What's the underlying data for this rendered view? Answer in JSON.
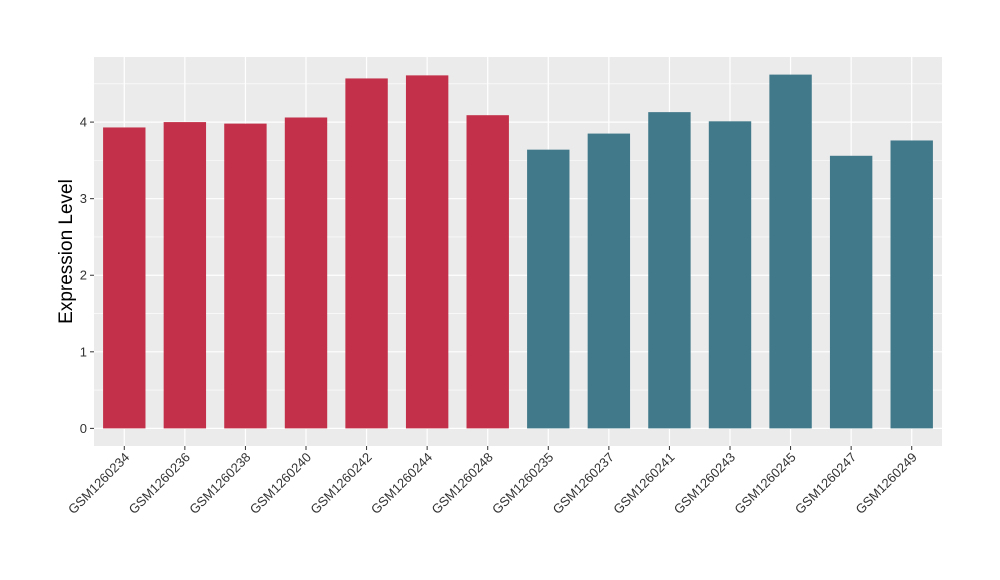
{
  "chart_data": {
    "type": "bar",
    "ylabel": "Expression Level",
    "xlabel": "",
    "ylim": [
      -0.23,
      4.85
    ],
    "yticks": [
      0,
      1,
      2,
      3,
      4
    ],
    "grid": true,
    "colors": {
      "group_a": "#C33049",
      "group_b": "#41798A",
      "panel": "#EBEBEB",
      "grid": "#FFFFFF"
    },
    "categories": [
      "GSM1260234",
      "GSM1260236",
      "GSM1260238",
      "GSM1260240",
      "GSM1260242",
      "GSM1260244",
      "GSM1260248",
      "GSM1260235",
      "GSM1260237",
      "GSM1260241",
      "GSM1260243",
      "GSM1260245",
      "GSM1260247",
      "GSM1260249"
    ],
    "values": [
      3.93,
      4.0,
      3.98,
      4.06,
      4.57,
      4.61,
      4.09,
      3.64,
      3.85,
      4.13,
      4.01,
      4.62,
      3.56,
      3.76
    ],
    "groups": [
      "a",
      "a",
      "a",
      "a",
      "a",
      "a",
      "a",
      "b",
      "b",
      "b",
      "b",
      "b",
      "b",
      "b"
    ]
  }
}
